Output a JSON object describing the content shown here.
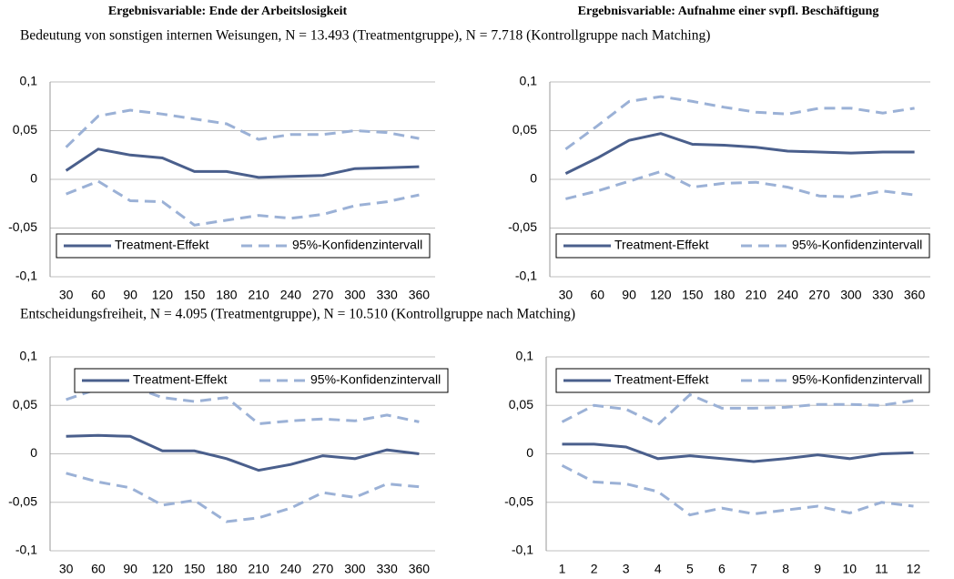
{
  "column_titles": [
    "Ergebnisvariable: Ende der Arbeitslosigkeit",
    "Ergebnisvariable: Aufnahme einer svpfl. Beschäftigung"
  ],
  "row_titles": [
    "Bedeutung von sonstigen internen Weisungen, N = 13.493 (Treatmentgruppe), N = 7.718  (Kontrollgruppe nach Matching)",
    "Entscheidungsfreiheit, N = 4.095 (Treatmentgruppe), N = 10.510  (Kontrollgruppe nach Matching)"
  ],
  "chart_data": [
    {
      "type": "line",
      "legend": "bottom",
      "grid": true,
      "categories": [
        "30",
        "60",
        "90",
        "120",
        "150",
        "180",
        "210",
        "240",
        "270",
        "300",
        "330",
        "360"
      ],
      "ylim": [
        -0.1,
        0.1
      ],
      "yticks": [
        {
          "value": 0.1,
          "label": "0,1"
        },
        {
          "value": 0.05,
          "label": "0,05"
        },
        0,
        {
          "value": -0.05,
          "label": "-0,05"
        },
        {
          "value": -0.1,
          "label": "-0,1"
        }
      ],
      "series": [
        {
          "name": "Treatment-Effekt",
          "color": "#4a5f8c",
          "values": [
            0.009,
            0.031,
            0.025,
            0.022,
            0.008,
            0.008,
            0.002,
            0.003,
            0.004,
            0.011,
            0.012,
            0.013
          ]
        },
        {
          "name": "95%-Konfidenzintervall",
          "color": "#9bb1d6",
          "upper": [
            0.033,
            0.065,
            0.071,
            0.067,
            0.062,
            0.057,
            0.041,
            0.046,
            0.046,
            0.05,
            0.048,
            0.042
          ],
          "lower": [
            -0.015,
            -0.002,
            -0.022,
            -0.023,
            -0.047,
            -0.042,
            -0.037,
            -0.04,
            -0.036,
            -0.027,
            -0.023,
            -0.016
          ]
        }
      ]
    },
    {
      "type": "line",
      "legend": "bottom",
      "grid": true,
      "categories": [
        "30",
        "60",
        "90",
        "120",
        "150",
        "180",
        "210",
        "240",
        "270",
        "300",
        "330",
        "360"
      ],
      "ylim": [
        -0.1,
        0.1
      ],
      "yticks": [
        {
          "value": 0.1,
          "label": "0,1"
        },
        {
          "value": 0.05,
          "label": "0,05"
        },
        0,
        {
          "value": -0.05,
          "label": "-0,05"
        },
        {
          "value": -0.1,
          "label": "-0,1"
        }
      ],
      "series": [
        {
          "name": "Treatment-Effekt",
          "color": "#4a5f8c",
          "values": [
            0.006,
            0.022,
            0.04,
            0.047,
            0.036,
            0.035,
            0.033,
            0.029,
            0.028,
            0.027,
            0.028,
            0.028
          ]
        },
        {
          "name": "95%-Konfidenzintervall",
          "color": "#9bb1d6",
          "upper": [
            0.031,
            0.055,
            0.08,
            0.085,
            0.08,
            0.074,
            0.069,
            0.067,
            0.073,
            0.073,
            0.068,
            0.073
          ],
          "lower": [
            -0.02,
            -0.012,
            -0.002,
            0.008,
            -0.008,
            -0.004,
            -0.003,
            -0.008,
            -0.017,
            -0.018,
            -0.012,
            -0.016
          ]
        }
      ]
    },
    {
      "type": "line",
      "legend": "top",
      "grid": true,
      "categories": [
        "30",
        "60",
        "90",
        "120",
        "150",
        "180",
        "210",
        "240",
        "270",
        "300",
        "330",
        "360"
      ],
      "ylim": [
        -0.1,
        0.1
      ],
      "yticks": [
        {
          "value": 0.1,
          "label": "0,1"
        },
        {
          "value": 0.05,
          "label": "0,05"
        },
        0,
        {
          "value": -0.05,
          "label": "-0,05"
        },
        {
          "value": -0.1,
          "label": "-0,1"
        }
      ],
      "series": [
        {
          "name": "Treatment-Effekt",
          "color": "#4a5f8c",
          "values": [
            0.018,
            0.019,
            0.018,
            0.003,
            0.003,
            -0.005,
            -0.017,
            -0.011,
            -0.002,
            -0.005,
            0.004,
            0.0
          ]
        },
        {
          "name": "95%-Konfidenzintervall",
          "color": "#9bb1d6",
          "upper": [
            0.056,
            0.067,
            0.07,
            0.058,
            0.054,
            0.058,
            0.031,
            0.034,
            0.036,
            0.034,
            0.04,
            0.033
          ],
          "lower": [
            -0.02,
            -0.029,
            -0.035,
            -0.053,
            -0.048,
            -0.07,
            -0.066,
            -0.056,
            -0.04,
            -0.045,
            -0.031,
            -0.034
          ]
        }
      ]
    },
    {
      "type": "line",
      "legend": "top",
      "grid": true,
      "categories": [
        "1",
        "2",
        "3",
        "4",
        "5",
        "6",
        "7",
        "8",
        "9",
        "10",
        "11",
        "12"
      ],
      "ylim": [
        -0.1,
        0.1
      ],
      "yticks": [
        {
          "value": 0.1,
          "label": "0,1"
        },
        {
          "value": 0.05,
          "label": "0,05"
        },
        0,
        {
          "value": -0.05,
          "label": "-0,05"
        },
        {
          "value": -0.1,
          "label": "-0,1"
        }
      ],
      "series": [
        {
          "name": "Treatment-Effekt",
          "color": "#4a5f8c",
          "values": [
            0.01,
            0.01,
            0.007,
            -0.005,
            -0.002,
            -0.005,
            -0.008,
            -0.005,
            -0.001,
            -0.005,
            0.0,
            0.001
          ]
        },
        {
          "name": "95%-Konfidenzintervall",
          "color": "#9bb1d6",
          "upper": [
            0.033,
            0.05,
            0.046,
            0.03,
            0.061,
            0.047,
            0.047,
            0.048,
            0.051,
            0.051,
            0.05,
            0.055
          ],
          "lower": [
            -0.012,
            -0.029,
            -0.031,
            -0.039,
            -0.063,
            -0.056,
            -0.062,
            -0.058,
            -0.054,
            -0.061,
            -0.05,
            -0.054
          ]
        }
      ]
    }
  ]
}
